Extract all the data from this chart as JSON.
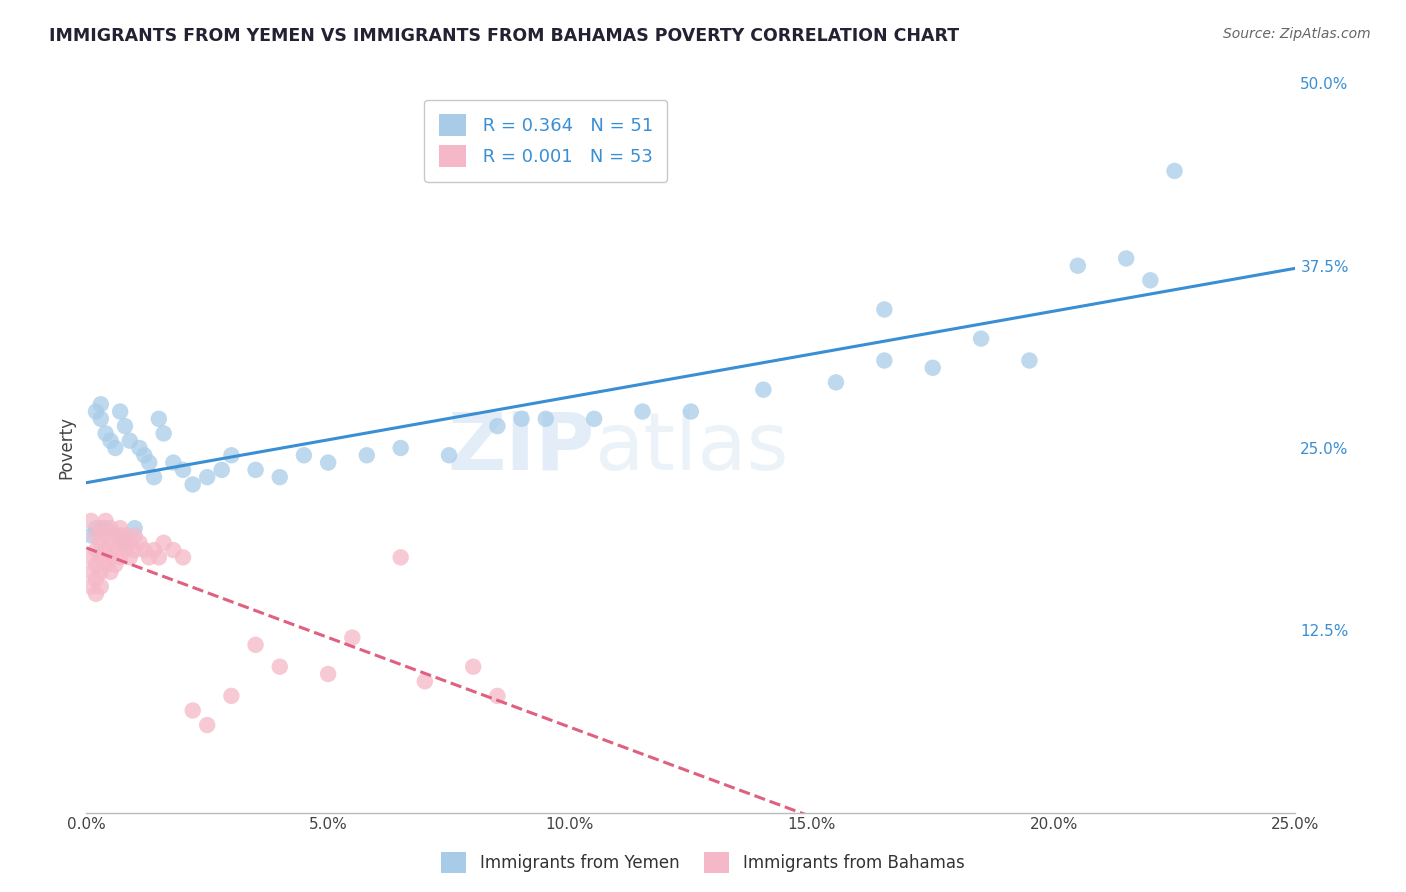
{
  "title": "IMMIGRANTS FROM YEMEN VS IMMIGRANTS FROM BAHAMAS POVERTY CORRELATION CHART",
  "source": "Source: ZipAtlas.com",
  "ylabel": "Poverty",
  "xlim": [
    0,
    0.25
  ],
  "ylim": [
    0,
    0.5
  ],
  "xticks": [
    0.0,
    0.05,
    0.1,
    0.15,
    0.2,
    0.25
  ],
  "yticks": [
    0.0,
    0.125,
    0.25,
    0.375,
    0.5
  ],
  "legend_labels": [
    "Immigrants from Yemen",
    "Immigrants from Bahamas"
  ],
  "blue_color": "#a8cce8",
  "pink_color": "#f5b8c8",
  "blue_line_color": "#3a8fd4",
  "pink_line_color": "#e06080",
  "R_blue": 0.364,
  "N_blue": 51,
  "R_pink": 0.001,
  "N_pink": 53,
  "watermark_zip": "ZIP",
  "watermark_atlas": "atlas",
  "background_color": "#ffffff",
  "grid_color": "#c8c8c8",
  "title_color": "#222233",
  "right_tick_color": "#3a8fd4",
  "yemen_x": [
    0.001,
    0.002,
    0.002,
    0.003,
    0.003,
    0.004,
    0.004,
    0.005,
    0.006,
    0.007,
    0.007,
    0.008,
    0.009,
    0.01,
    0.011,
    0.012,
    0.013,
    0.014,
    0.015,
    0.016,
    0.018,
    0.02,
    0.022,
    0.025,
    0.028,
    0.03,
    0.035,
    0.04,
    0.045,
    0.05,
    0.058,
    0.065,
    0.075,
    0.085,
    0.095,
    0.105,
    0.115,
    0.125,
    0.14,
    0.155,
    0.165,
    0.175,
    0.185,
    0.195,
    0.205,
    0.215,
    0.22,
    0.225,
    0.165,
    0.09,
    0.008
  ],
  "yemen_y": [
    0.19,
    0.195,
    0.275,
    0.28,
    0.27,
    0.195,
    0.26,
    0.255,
    0.25,
    0.19,
    0.275,
    0.265,
    0.255,
    0.195,
    0.25,
    0.245,
    0.24,
    0.23,
    0.27,
    0.26,
    0.24,
    0.235,
    0.225,
    0.23,
    0.235,
    0.245,
    0.235,
    0.23,
    0.245,
    0.24,
    0.245,
    0.25,
    0.245,
    0.265,
    0.27,
    0.27,
    0.275,
    0.275,
    0.29,
    0.295,
    0.31,
    0.305,
    0.325,
    0.31,
    0.375,
    0.38,
    0.365,
    0.44,
    0.345,
    0.27,
    0.185
  ],
  "bahamas_x": [
    0.001,
    0.001,
    0.001,
    0.001,
    0.002,
    0.002,
    0.002,
    0.002,
    0.002,
    0.003,
    0.003,
    0.003,
    0.003,
    0.003,
    0.004,
    0.004,
    0.004,
    0.004,
    0.005,
    0.005,
    0.005,
    0.005,
    0.006,
    0.006,
    0.006,
    0.007,
    0.007,
    0.007,
    0.008,
    0.008,
    0.009,
    0.009,
    0.01,
    0.01,
    0.011,
    0.012,
    0.013,
    0.014,
    0.015,
    0.016,
    0.018,
    0.02,
    0.022,
    0.025,
    0.03,
    0.035,
    0.04,
    0.05,
    0.055,
    0.065,
    0.07,
    0.08,
    0.085
  ],
  "bahamas_y": [
    0.2,
    0.175,
    0.165,
    0.155,
    0.19,
    0.18,
    0.17,
    0.16,
    0.15,
    0.195,
    0.185,
    0.175,
    0.165,
    0.155,
    0.2,
    0.19,
    0.18,
    0.17,
    0.195,
    0.185,
    0.175,
    0.165,
    0.19,
    0.18,
    0.17,
    0.195,
    0.185,
    0.175,
    0.19,
    0.18,
    0.185,
    0.175,
    0.19,
    0.18,
    0.185,
    0.18,
    0.175,
    0.18,
    0.175,
    0.185,
    0.18,
    0.175,
    0.07,
    0.06,
    0.08,
    0.115,
    0.1,
    0.095,
    0.12,
    0.175,
    0.09,
    0.1,
    0.08
  ]
}
